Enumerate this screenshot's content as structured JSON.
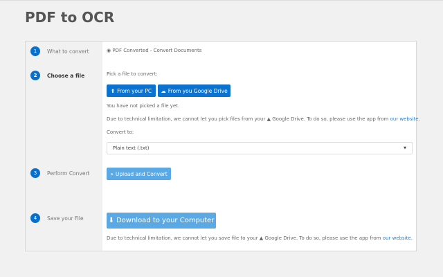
{
  "title": "PDF to OCR",
  "steps": [
    {
      "num": "1",
      "label": "What to convert"
    },
    {
      "num": "2",
      "label": "Choose a file"
    },
    {
      "num": "3",
      "label": "Perform Convert"
    },
    {
      "num": "4",
      "label": "Save your File"
    }
  ],
  "what": {
    "radio_label": "PDF Converted - Convert Documents"
  },
  "choose": {
    "prompt": "Pick a file to convert:",
    "from_pc": "From your PC",
    "from_drive": "From you Google Drive",
    "status": "You have not picked a file yet.",
    "notice_pre": "Due to technical limitation, we cannot let you pick files from your",
    "notice_drive": "Google Drive. To do so, please use the app from",
    "link": "our website",
    "convert_to": "Convert to:",
    "format": "Plain text (.txt)"
  },
  "perform": {
    "button": "Upload and Convert"
  },
  "save": {
    "button": "Download to your Computer",
    "notice_pre": "Due to technical limitation, we cannot let you save file to your",
    "notice_drive": "Google Drive. To do so, please use the app from",
    "link": "our website"
  }
}
